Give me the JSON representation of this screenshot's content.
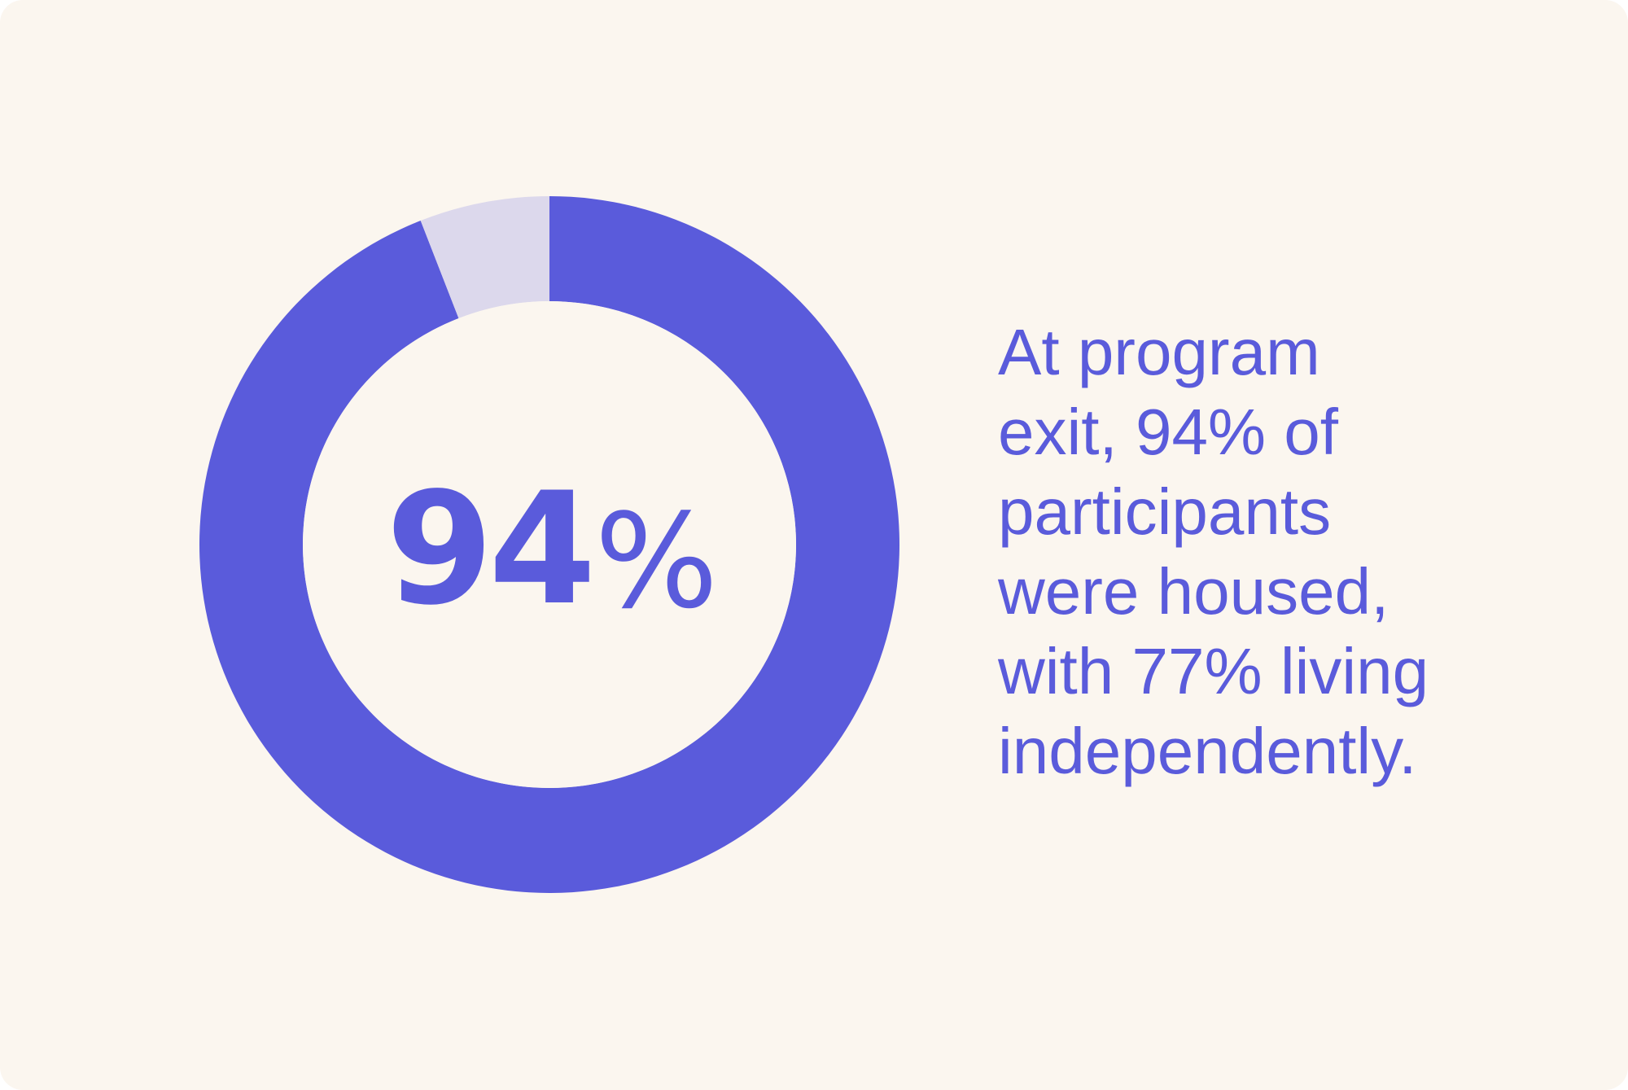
{
  "colors": {
    "background": "#fbf6ef",
    "accent": "#5a5bdb",
    "remainder": "#dcd8ec",
    "hole": "#fbf6ef"
  },
  "chart_data": {
    "type": "pie",
    "donut": true,
    "slices": [
      {
        "label": "",
        "value": 94,
        "color": "#5a5bdb"
      },
      {
        "label": "",
        "value": 6,
        "color": "#dcd8ec"
      }
    ],
    "center_label": {
      "value": "94",
      "unit": "%"
    },
    "legend": "none"
  },
  "caption": {
    "lines": [
      "At program",
      "exit, 94% of",
      "participants",
      "were housed,",
      "with 77% living",
      "independently."
    ]
  }
}
